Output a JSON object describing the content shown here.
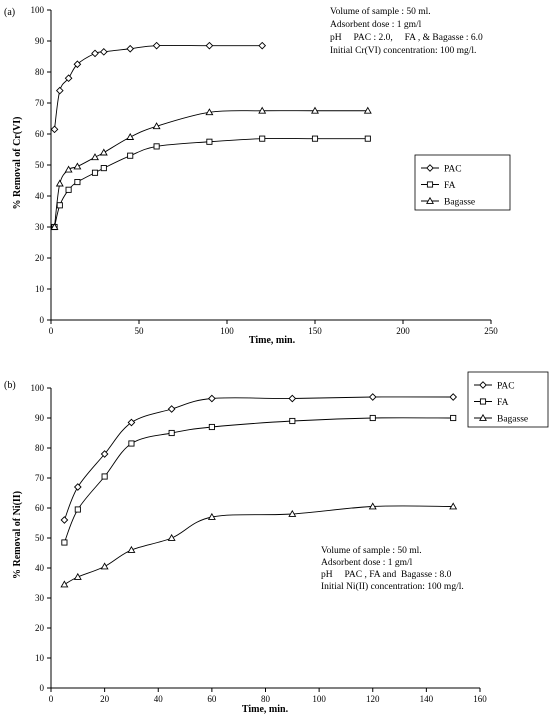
{
  "chart_data": [
    {
      "type": "line",
      "panel_label": "(a)",
      "xlabel": "Time, min.",
      "ylabel": "% Removal of Cr(VI)",
      "xlim": [
        0,
        250
      ],
      "ylim": [
        0,
        100
      ],
      "xticks": [
        0,
        50,
        100,
        150,
        200,
        250
      ],
      "yticks": [
        0,
        10,
        20,
        30,
        40,
        50,
        60,
        70,
        80,
        90,
        100
      ],
      "annotation": [
        "Volume of sample : 50 ml.",
        "Adsorbent dose : 1 gm/l",
        "pH     PAC : 2.0,     FA , & Bagasse : 6.0",
        "Initial Cr(VI) concentration: 100 mg/l."
      ],
      "legend_position": "right",
      "series": [
        {
          "name": "PAC",
          "marker": "diamond",
          "x": [
            2,
            5,
            10,
            15,
            25,
            30,
            45,
            60,
            90,
            120
          ],
          "y": [
            61.5,
            74,
            78,
            82.5,
            86,
            86.5,
            87.5,
            88.5,
            88.5,
            88.5
          ]
        },
        {
          "name": "FA",
          "marker": "square",
          "x": [
            2,
            5,
            10,
            15,
            25,
            30,
            45,
            60,
            90,
            120,
            150,
            180
          ],
          "y": [
            30,
            37,
            42,
            44.5,
            47.5,
            49,
            53,
            56,
            57.5,
            58.5,
            58.5,
            58.5
          ]
        },
        {
          "name": "Bagasse",
          "marker": "triangle",
          "x": [
            2,
            5,
            10,
            15,
            25,
            30,
            45,
            60,
            90,
            120,
            150,
            180
          ],
          "y": [
            30,
            44,
            48.5,
            49.5,
            52.5,
            54,
            59,
            62.5,
            67,
            67.5,
            67.5,
            67.5
          ]
        }
      ]
    },
    {
      "type": "line",
      "panel_label": "(b)",
      "xlabel": "Time, min.",
      "ylabel": "% Removal of Ni(II)",
      "xlim": [
        0,
        160
      ],
      "ylim": [
        0,
        100
      ],
      "xticks": [
        0,
        20,
        40,
        60,
        80,
        100,
        120,
        140,
        160
      ],
      "yticks": [
        0,
        10,
        20,
        30,
        40,
        50,
        60,
        70,
        80,
        90,
        100
      ],
      "annotation": [
        "Volume of sample : 50 ml.",
        "Adsorbent dose : 1 gm/l",
        "pH     PAC , FA and  Bagasse : 8.0",
        "Initial Ni(II) concentration: 100 mg/l."
      ],
      "legend_position": "top-right",
      "series": [
        {
          "name": "PAC",
          "marker": "diamond",
          "x": [
            5,
            10,
            20,
            30,
            45,
            60,
            90,
            120,
            150
          ],
          "y": [
            56,
            67,
            78,
            88.5,
            93,
            96.5,
            96.5,
            97,
            97
          ]
        },
        {
          "name": "FA",
          "marker": "square",
          "x": [
            5,
            10,
            20,
            30,
            45,
            60,
            90,
            120,
            150
          ],
          "y": [
            48.5,
            59.5,
            70.5,
            81.5,
            85,
            87,
            89,
            90,
            90
          ]
        },
        {
          "name": "Bagasse",
          "marker": "triangle",
          "x": [
            5,
            10,
            20,
            30,
            45,
            60,
            90,
            120,
            150
          ],
          "y": [
            34.5,
            37,
            40.5,
            46,
            50,
            57,
            58,
            60.5,
            60.5
          ]
        }
      ]
    }
  ]
}
